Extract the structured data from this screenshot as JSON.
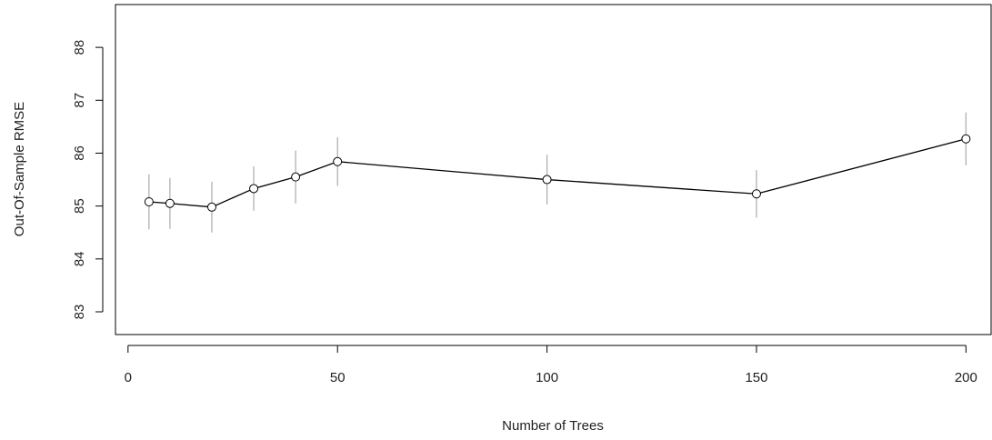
{
  "chart_data": {
    "type": "line",
    "x_label": "Number of Trees",
    "y_label": "Out-Of-Sample RMSE",
    "x": [
      5,
      10,
      20,
      30,
      40,
      50,
      100,
      150,
      200
    ],
    "series": [
      {
        "color": "#000000",
        "error_color": "#aaaaaa",
        "values": [
          85.08,
          85.05,
          84.98,
          85.33,
          85.55,
          85.84,
          85.5,
          85.23,
          86.27
        ],
        "errors": [
          0.52,
          0.48,
          0.48,
          0.42,
          0.5,
          0.46,
          0.47,
          0.45,
          0.5
        ]
      }
    ],
    "xlim": [
      -3,
      206
    ],
    "ylim": [
      82.57,
      88.81
    ],
    "xticks": [
      0,
      50,
      100,
      150,
      200
    ],
    "yticks": [
      83,
      84,
      85,
      86,
      87,
      88
    ]
  }
}
